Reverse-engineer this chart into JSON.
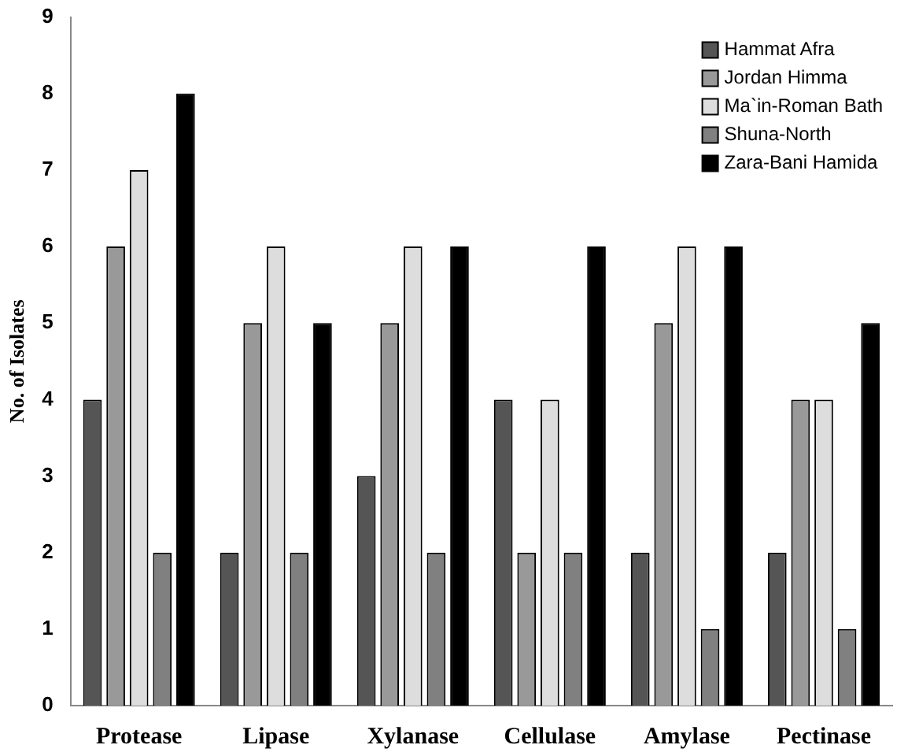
{
  "chart_data": {
    "type": "bar",
    "ylabel": "No. of Isolates",
    "categories": [
      "Protease",
      "Lipase",
      "Xylanase",
      "Cellulase",
      "Amylase",
      "Pectinase"
    ],
    "series": [
      {
        "name": "Hammat Afra",
        "color": "#555555",
        "values": [
          4,
          2,
          3,
          4,
          2,
          2
        ]
      },
      {
        "name": "Jordan Himma",
        "color": "#999999",
        "values": [
          6,
          5,
          5,
          2,
          5,
          4
        ]
      },
      {
        "name": "Ma`in-Roman Bath",
        "color": "#dddddd",
        "values": [
          7,
          6,
          6,
          4,
          6,
          4
        ]
      },
      {
        "name": "Shuna-North",
        "color": "#808080",
        "values": [
          2,
          2,
          2,
          2,
          1,
          1
        ]
      },
      {
        "name": "Zara-Bani Hamida",
        "color": "#000000",
        "values": [
          8,
          5,
          6,
          6,
          6,
          5
        ]
      }
    ],
    "ylim": [
      0,
      9
    ],
    "yticks": [
      0,
      1,
      2,
      3,
      4,
      5,
      6,
      7,
      8,
      9
    ],
    "grid": false,
    "legend": "top right"
  }
}
